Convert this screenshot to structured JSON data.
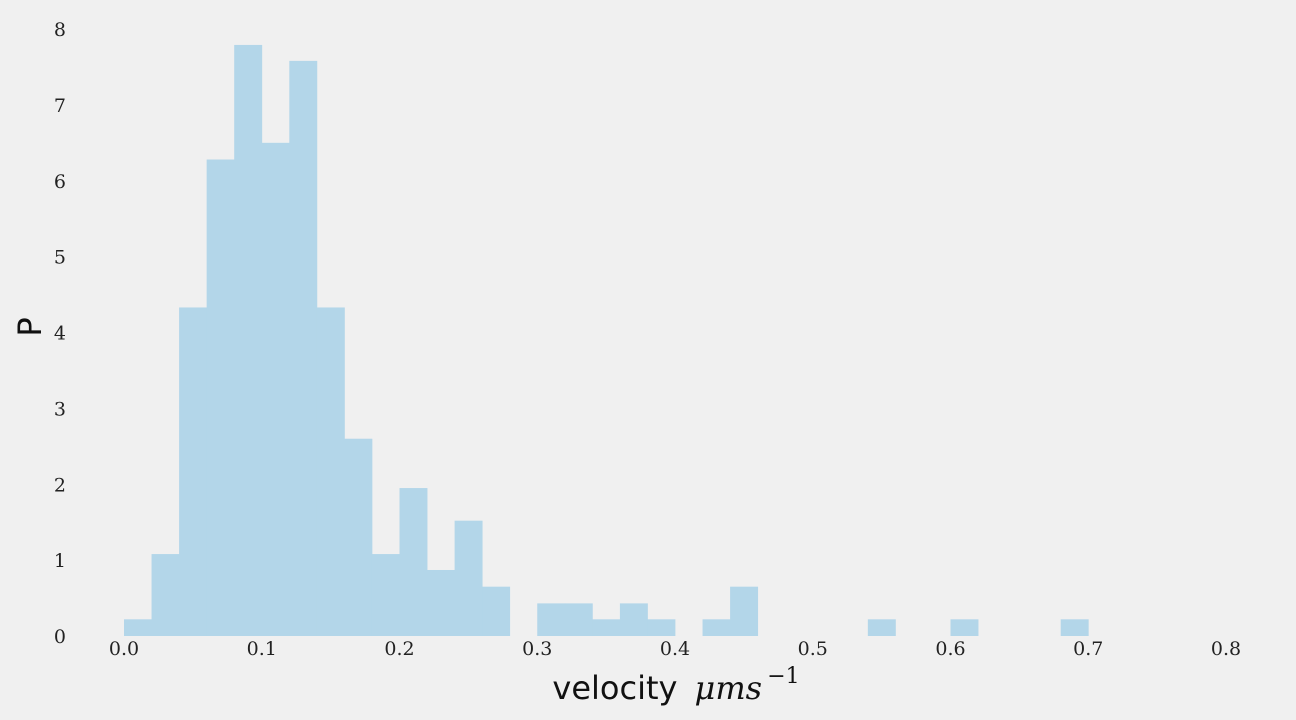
{
  "chart_data": {
    "type": "bar",
    "subtype": "histogram",
    "title": "",
    "xlabel": "velocity",
    "xlabel_math": "μms",
    "xlabel_sup": "−1",
    "ylabel": "P",
    "xlim": [
      0.0,
      0.8
    ],
    "ylim": [
      0,
      8
    ],
    "xticks": [
      "0.0",
      "0.1",
      "0.2",
      "0.3",
      "0.4",
      "0.5",
      "0.6",
      "0.7",
      "0.8"
    ],
    "yticks": [
      "0",
      "1",
      "2",
      "3",
      "4",
      "5",
      "6",
      "7",
      "8"
    ],
    "grid": false,
    "legend": "none",
    "bar_color": "#b3d6e9",
    "bins": [
      {
        "x0": 0.0,
        "x1": 0.02,
        "value": 0.22
      },
      {
        "x0": 0.02,
        "x1": 0.04,
        "value": 1.08
      },
      {
        "x0": 0.04,
        "x1": 0.06,
        "value": 4.33
      },
      {
        "x0": 0.06,
        "x1": 0.08,
        "value": 6.28
      },
      {
        "x0": 0.08,
        "x1": 0.1,
        "value": 7.79
      },
      {
        "x0": 0.1,
        "x1": 0.12,
        "value": 6.5
      },
      {
        "x0": 0.12,
        "x1": 0.14,
        "value": 7.58
      },
      {
        "x0": 0.14,
        "x1": 0.16,
        "value": 4.33
      },
      {
        "x0": 0.16,
        "x1": 0.18,
        "value": 2.6
      },
      {
        "x0": 0.18,
        "x1": 0.2,
        "value": 1.08
      },
      {
        "x0": 0.2,
        "x1": 0.22,
        "value": 1.95
      },
      {
        "x0": 0.22,
        "x1": 0.24,
        "value": 0.87
      },
      {
        "x0": 0.24,
        "x1": 0.26,
        "value": 1.52
      },
      {
        "x0": 0.26,
        "x1": 0.28,
        "value": 0.65
      },
      {
        "x0": 0.28,
        "x1": 0.3,
        "value": 0.0
      },
      {
        "x0": 0.3,
        "x1": 0.32,
        "value": 0.43
      },
      {
        "x0": 0.32,
        "x1": 0.34,
        "value": 0.43
      },
      {
        "x0": 0.34,
        "x1": 0.36,
        "value": 0.22
      },
      {
        "x0": 0.36,
        "x1": 0.38,
        "value": 0.43
      },
      {
        "x0": 0.38,
        "x1": 0.4,
        "value": 0.22
      },
      {
        "x0": 0.4,
        "x1": 0.42,
        "value": 0.0
      },
      {
        "x0": 0.42,
        "x1": 0.44,
        "value": 0.22
      },
      {
        "x0": 0.44,
        "x1": 0.46,
        "value": 0.65
      },
      {
        "x0": 0.46,
        "x1": 0.48,
        "value": 0.0
      },
      {
        "x0": 0.48,
        "x1": 0.5,
        "value": 0.0
      },
      {
        "x0": 0.5,
        "x1": 0.52,
        "value": 0.0
      },
      {
        "x0": 0.52,
        "x1": 0.54,
        "value": 0.0
      },
      {
        "x0": 0.54,
        "x1": 0.56,
        "value": 0.22
      },
      {
        "x0": 0.56,
        "x1": 0.58,
        "value": 0.0
      },
      {
        "x0": 0.58,
        "x1": 0.6,
        "value": 0.0
      },
      {
        "x0": 0.6,
        "x1": 0.62,
        "value": 0.22
      },
      {
        "x0": 0.62,
        "x1": 0.64,
        "value": 0.0
      },
      {
        "x0": 0.64,
        "x1": 0.66,
        "value": 0.0
      },
      {
        "x0": 0.66,
        "x1": 0.68,
        "value": 0.0
      },
      {
        "x0": 0.68,
        "x1": 0.7,
        "value": 0.22
      }
    ]
  }
}
